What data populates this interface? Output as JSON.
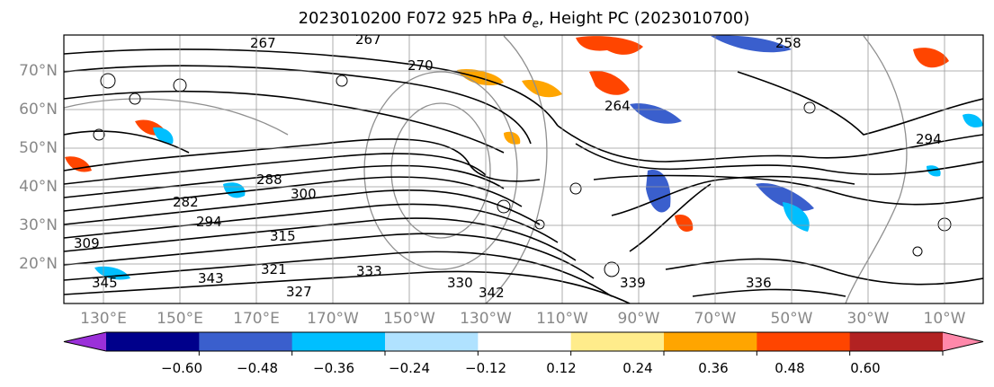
{
  "title": "2023010200 F072 925 hPa θe, Height PC (2023010700)",
  "map": {
    "lat_labels": [
      "70°N",
      "60°N",
      "50°N",
      "40°N",
      "30°N",
      "20°N"
    ],
    "lon_labels": [
      "130°E",
      "150°E",
      "170°E",
      "170°W",
      "150°W",
      "130°W",
      "110°W",
      "90°W",
      "70°W",
      "50°W",
      "30°W",
      "10°W"
    ],
    "contour_labels": [
      "267",
      "267",
      "270",
      "258",
      "264",
      "288",
      "300",
      "282",
      "294",
      "309",
      "315",
      "321",
      "327",
      "330",
      "333",
      "336",
      "339",
      "342",
      "343",
      "345",
      "294"
    ],
    "frame_color": "#000000",
    "gridline_color": "#999999"
  },
  "colorbar": {
    "colors": [
      "#9b30d9",
      "#00008b",
      "#3a5fcd",
      "#00bfff",
      "#b0e2ff",
      "#ffffff",
      "#ffec8b",
      "#ffa500",
      "#ff4500",
      "#b22222",
      "#ff88aa"
    ],
    "tick_labels": [
      "−0.60",
      "−0.48",
      "−0.36",
      "−0.24",
      "−0.12",
      "0.12",
      "0.24",
      "0.36",
      "0.48",
      "0.60"
    ],
    "tick_values": [
      -0.6,
      -0.48,
      -0.36,
      -0.24,
      -0.12,
      0.12,
      0.24,
      0.36,
      0.48,
      0.6
    ]
  }
}
